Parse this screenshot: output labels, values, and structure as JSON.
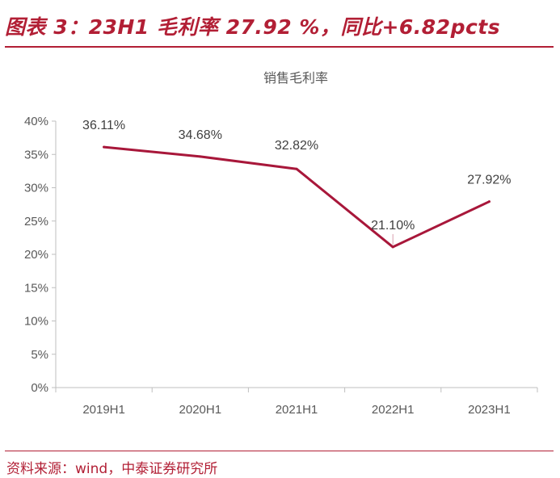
{
  "figure_title": "图表 3：23H1 毛利率 27.92 %，同比+6.82pcts",
  "source_note": "资料来源：wind，中泰证券研究所",
  "colors": {
    "accent": "#b21f35",
    "line": "#a8173a",
    "axis": "#bfbfbf",
    "text": "#595959"
  },
  "chart_data": {
    "type": "line",
    "title": "销售毛利率",
    "xlabel": "",
    "ylabel": "",
    "categories": [
      "2019H1",
      "2020H1",
      "2021H1",
      "2022H1",
      "2023H1"
    ],
    "series": [
      {
        "values": [
          36.11,
          34.68,
          32.82,
          21.1,
          27.92
        ]
      }
    ],
    "data_labels": [
      "36.11%",
      "34.68%",
      "32.82%",
      "21.10%",
      "27.92%"
    ],
    "y_ticks": [
      "0%",
      "5%",
      "10%",
      "15%",
      "20%",
      "25%",
      "30%",
      "35%",
      "40%"
    ],
    "ylim": [
      0,
      40
    ],
    "grid": false,
    "legend": "none"
  }
}
